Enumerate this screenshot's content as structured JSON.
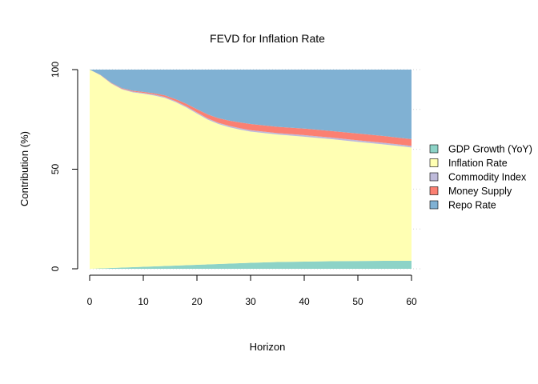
{
  "chart_data": {
    "type": "area",
    "stacked": true,
    "title": "FEVD for Inflation Rate",
    "xlabel": "Horizon",
    "ylabel": "Contribution (%)",
    "xlim": [
      0,
      60
    ],
    "ylim": [
      0,
      100
    ],
    "x_ticks": [
      0,
      10,
      20,
      30,
      40,
      50,
      60
    ],
    "y_ticks": [
      0,
      50,
      100
    ],
    "grid": "dotted horizontal",
    "legend_position": "right",
    "x": [
      0,
      2,
      4,
      6,
      8,
      10,
      12,
      14,
      16,
      18,
      20,
      22,
      24,
      26,
      28,
      30,
      35,
      40,
      45,
      50,
      55,
      60
    ],
    "series": [
      {
        "name": "GDP Growth (YoY)",
        "color": "#8DD3C7",
        "values": [
          0.0,
          0.2,
          0.4,
          0.6,
          0.8,
          1.0,
          1.2,
          1.4,
          1.6,
          1.8,
          2.0,
          2.2,
          2.4,
          2.6,
          2.8,
          3.0,
          3.4,
          3.6,
          3.8,
          3.9,
          4.0,
          4.0
        ]
      },
      {
        "name": "Inflation Rate",
        "color": "#FFFFB3",
        "values": [
          100.0,
          97.0,
          92.6,
          89.5,
          87.8,
          86.9,
          85.8,
          84.4,
          82.1,
          79.2,
          75.9,
          72.7,
          70.3,
          68.5,
          67.1,
          65.9,
          64.0,
          62.7,
          61.3,
          59.8,
          58.4,
          56.9
        ]
      },
      {
        "name": "Commodity Index",
        "color": "#BEBADA",
        "values": [
          0.0,
          0.1,
          0.2,
          0.3,
          0.4,
          0.4,
          0.5,
          0.5,
          0.5,
          0.6,
          0.6,
          0.6,
          0.6,
          0.7,
          0.7,
          0.7,
          0.7,
          0.8,
          0.8,
          0.8,
          0.8,
          0.8
        ]
      },
      {
        "name": "Money Supply",
        "color": "#FB8072",
        "values": [
          0.0,
          0.1,
          0.2,
          0.3,
          0.4,
          0.5,
          0.6,
          0.8,
          1.0,
          1.3,
          1.6,
          2.0,
          2.3,
          2.6,
          2.9,
          3.1,
          3.2,
          3.3,
          3.3,
          3.4,
          3.4,
          3.4
        ]
      },
      {
        "name": "Repo Rate",
        "color": "#80B1D3",
        "values": [
          0.0,
          2.6,
          6.6,
          9.3,
          10.6,
          11.2,
          11.9,
          12.9,
          14.8,
          17.1,
          19.9,
          22.5,
          24.4,
          25.6,
          26.5,
          27.3,
          28.7,
          29.6,
          30.8,
          32.1,
          33.4,
          34.9
        ]
      }
    ]
  }
}
